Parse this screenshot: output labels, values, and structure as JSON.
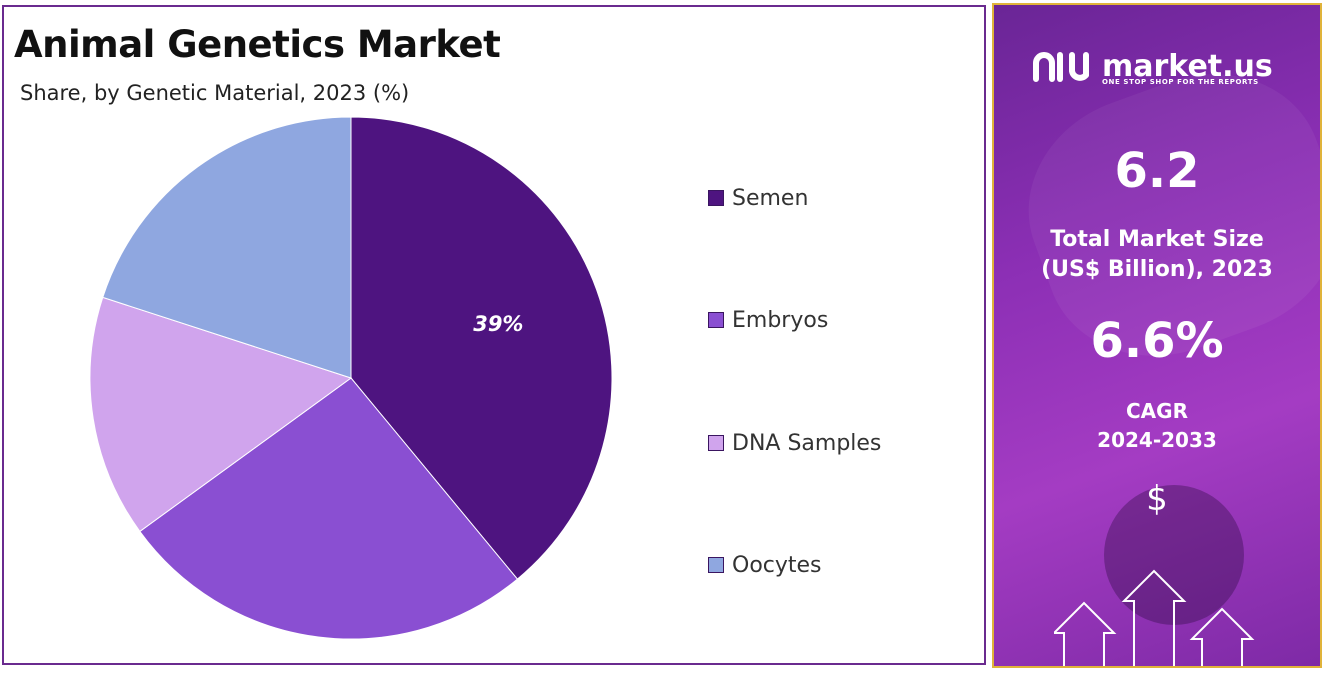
{
  "chart_data": {
    "type": "pie",
    "title": "Animal Genetics Market",
    "subtitle": "Share, by Genetic Material, 2023 (%)",
    "categories": [
      "Semen",
      "Embryos",
      "DNA Samples",
      "Oocytes"
    ],
    "values": [
      39,
      26,
      15,
      20
    ],
    "colors": [
      "#4e1480",
      "#8a4fd2",
      "#d0a4ed",
      "#8fa7e0"
    ],
    "data_labels": [
      "39%",
      "",
      "",
      ""
    ],
    "legend_position": "right"
  },
  "sidebar": {
    "brand": "market.us",
    "tagline": "ONE STOP SHOP FOR THE REPORTS",
    "market_size_value": "6.2",
    "market_size_label_line1": "Total Market Size",
    "market_size_label_line2": "(US$ Billion), 2023",
    "cagr_value": "6.6%",
    "cagr_label_line1": "CAGR",
    "cagr_label_line2": "2024-2033",
    "currency_symbol": "$",
    "icons": [
      "logo-mark-icon",
      "dollar-icon",
      "up-arrow-icon"
    ]
  },
  "colors": {
    "panel_border": "#6a2a8f",
    "sidebar_border": "#e0b33a",
    "sidebar_bg": "#8c2fb5"
  }
}
